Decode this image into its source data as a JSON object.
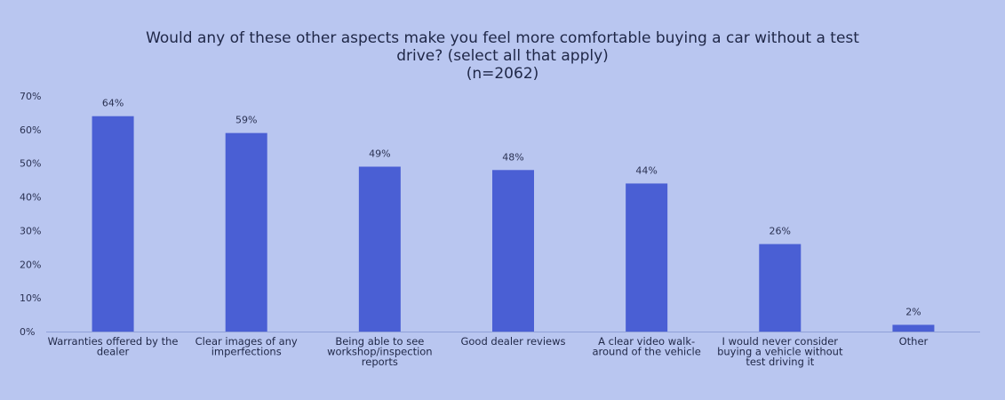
{
  "chart_data": {
    "type": "bar",
    "title_lines": [
      "Would any of these other aspects make you feel more comfortable buying a car without a test",
      "drive? (select all that apply)",
      "(n=2062)"
    ],
    "categories": [
      [
        "Warranties offered by the",
        "dealer"
      ],
      [
        "Clear images of any",
        "imperfections"
      ],
      [
        "Being able to see",
        "workshop/inspection",
        "reports"
      ],
      [
        "Good dealer reviews"
      ],
      [
        "A clear video walk-",
        "around of the vehicle"
      ],
      [
        "I would never consider",
        "buying a vehicle without",
        "test driving it"
      ],
      [
        "Other"
      ]
    ],
    "values": [
      64,
      59,
      49,
      48,
      44,
      26,
      2
    ],
    "value_labels": [
      "64%",
      "59%",
      "49%",
      "48%",
      "44%",
      "26%",
      "2%"
    ],
    "ylim": [
      0,
      70
    ],
    "yticks": [
      0,
      10,
      20,
      30,
      40,
      50,
      60,
      70
    ],
    "ytick_labels": [
      "0%",
      "10%",
      "20%",
      "30%",
      "40%",
      "50%",
      "60%",
      "70%"
    ],
    "xlabel": "",
    "ylabel": "",
    "bar_color": "#4a5fd4",
    "grid": false
  }
}
